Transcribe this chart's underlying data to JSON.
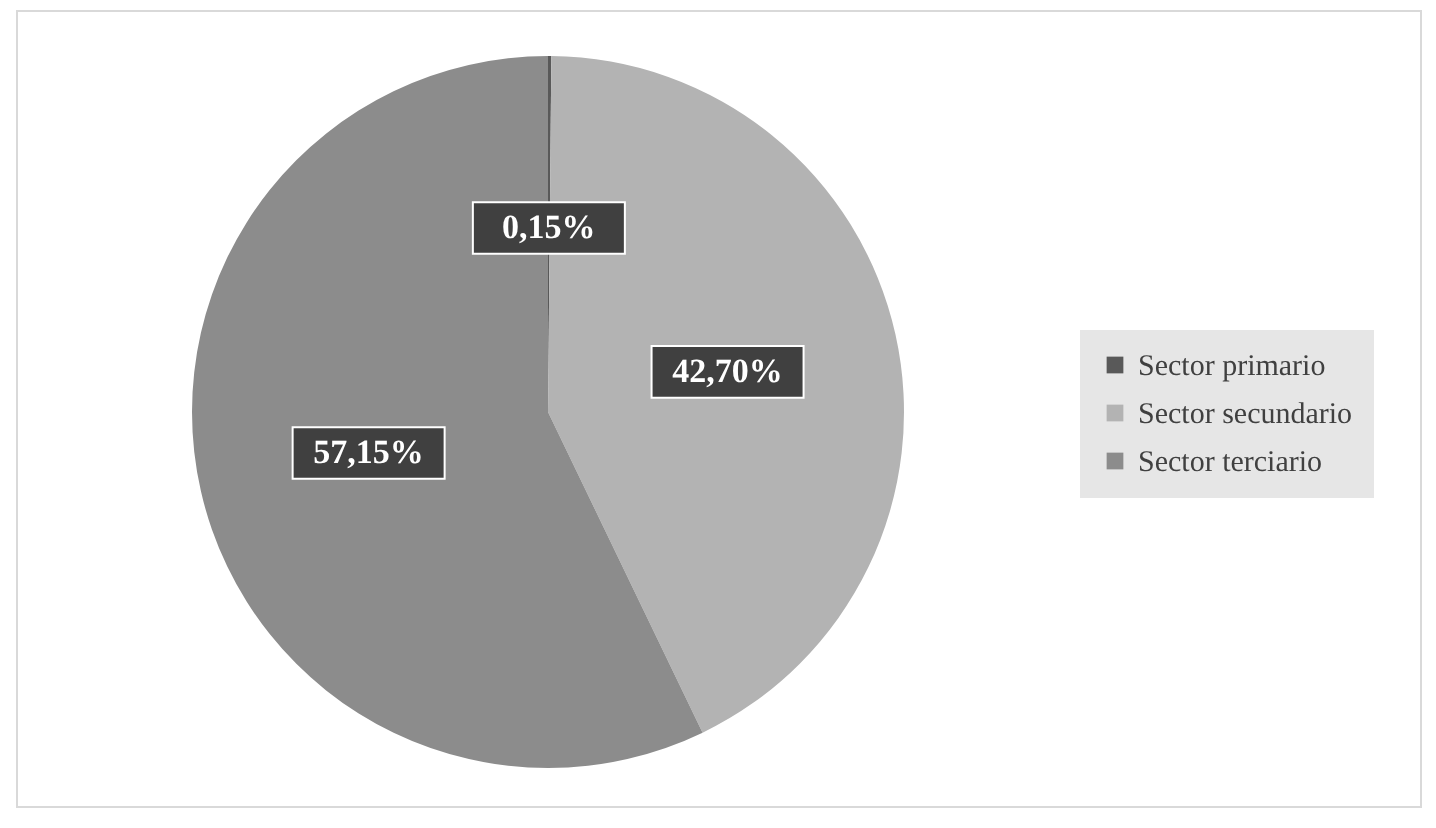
{
  "chart_data": {
    "type": "pie",
    "categories": [
      "Sector primario",
      "Sector secundario",
      "Sector terciario"
    ],
    "values": [
      0.15,
      42.7,
      57.15
    ],
    "colors": [
      "#595959",
      "#b3b3b3",
      "#8c8c8c"
    ],
    "value_labels": [
      "0,15%",
      "42,70%",
      "57,15%"
    ],
    "legend": "right"
  }
}
